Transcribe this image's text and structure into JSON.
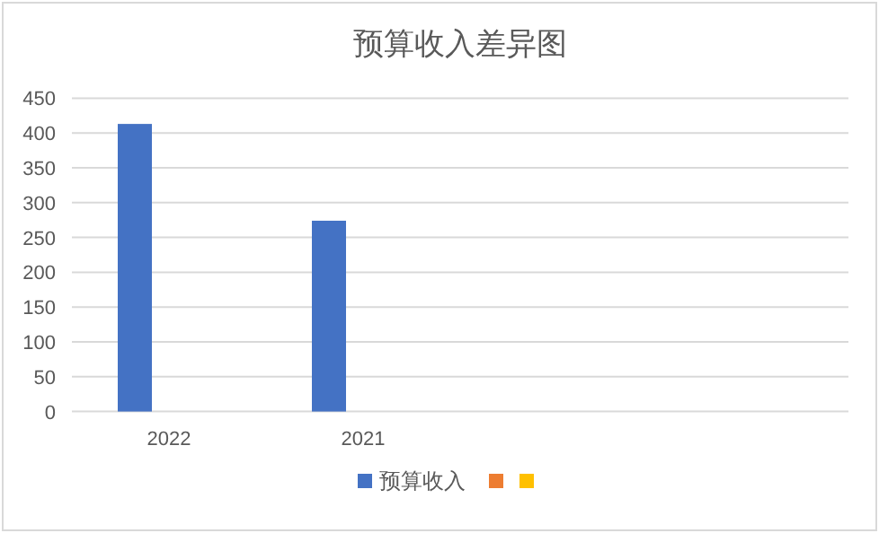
{
  "chart_data": {
    "type": "bar",
    "title": "预算收入差异图",
    "categories": [
      "2022",
      "2021",
      null,
      null
    ],
    "series": [
      {
        "name": "预算收入",
        "color": "#4472c4",
        "values": [
          413,
          274,
          null,
          null
        ]
      },
      {
        "name": null,
        "color": "#ed7d31",
        "values": [
          null,
          null,
          null,
          null
        ]
      },
      {
        "name": null,
        "color": "#ffc000",
        "values": [
          null,
          null,
          null,
          null
        ]
      }
    ],
    "ylim": [
      0,
      450
    ],
    "yticks": [
      0,
      50,
      100,
      150,
      200,
      250,
      300,
      350,
      400,
      450
    ],
    "grid": "y",
    "legend": "bottom"
  }
}
